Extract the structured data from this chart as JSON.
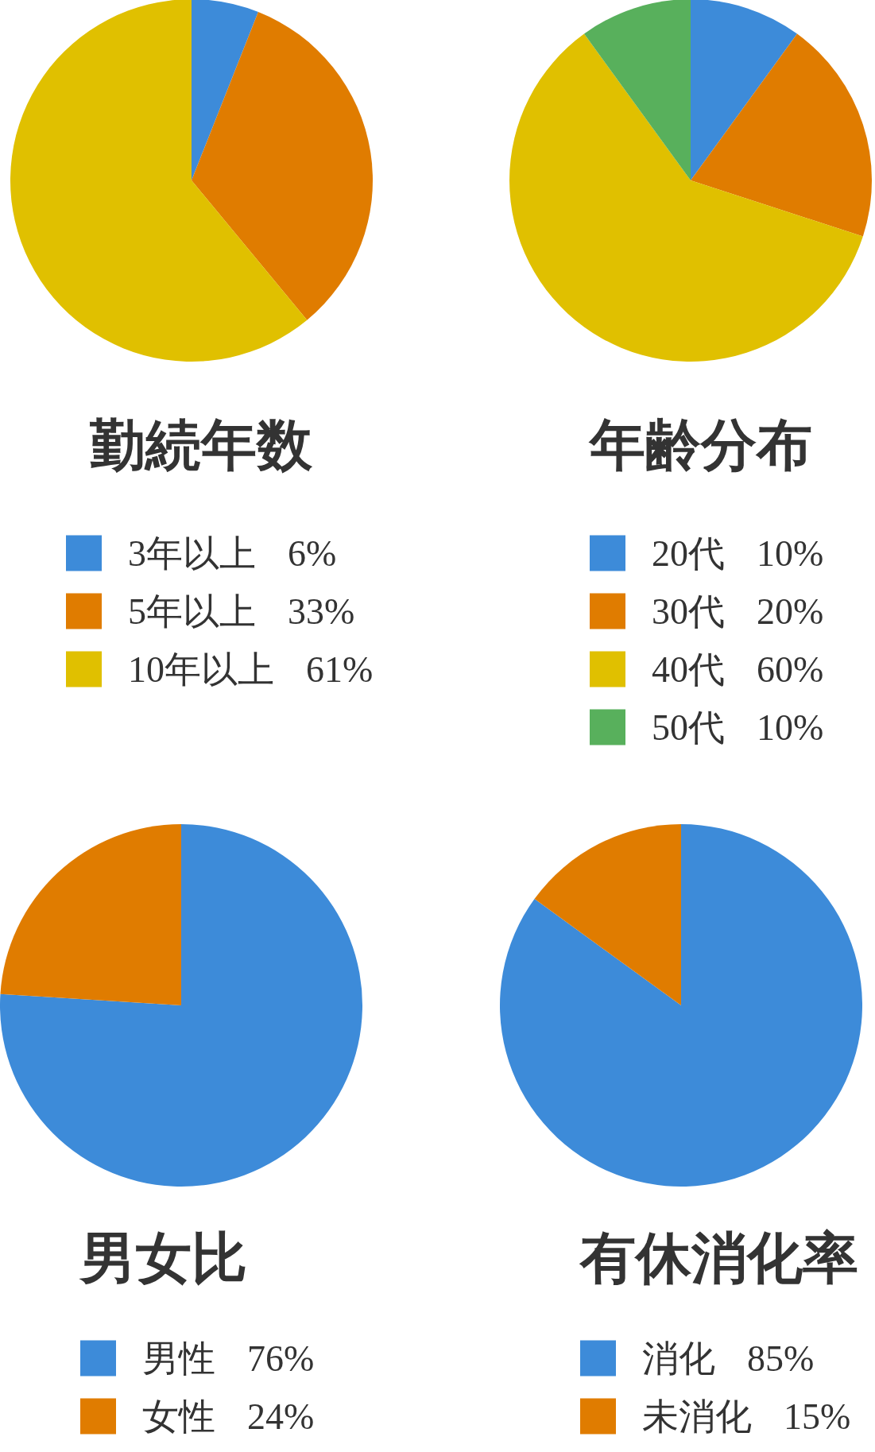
{
  "chart_data": [
    {
      "type": "pie",
      "title": "勤続年数",
      "categories": [
        "3年以上",
        "5年以上",
        "10年以上"
      ],
      "values": [
        6,
        33,
        61
      ],
      "value_labels": [
        "6%",
        "33%",
        "61%"
      ],
      "colors": [
        "#3d8bd9",
        "#e07c00",
        "#e0c000"
      ],
      "legend": "bottom"
    },
    {
      "type": "pie",
      "title": "年齢分布",
      "categories": [
        "20代",
        "30代",
        "40代",
        "50代"
      ],
      "values": [
        10,
        20,
        60,
        10
      ],
      "value_labels": [
        "10%",
        "20%",
        "60%",
        "10%"
      ],
      "colors": [
        "#3d8bd9",
        "#e07c00",
        "#e0c000",
        "#58b05c"
      ],
      "legend": "bottom"
    },
    {
      "type": "pie",
      "title": "男女比",
      "categories": [
        "男性",
        "女性"
      ],
      "values": [
        76,
        24
      ],
      "value_labels": [
        "76%",
        "24%"
      ],
      "colors": [
        "#3d8bd9",
        "#e07c00"
      ],
      "legend": "bottom"
    },
    {
      "type": "pie",
      "title": "有休消化率",
      "categories": [
        "消化",
        "未消化"
      ],
      "values": [
        85,
        15
      ],
      "value_labels": [
        "85%",
        "15%"
      ],
      "colors": [
        "#3d8bd9",
        "#e07c00"
      ],
      "legend": "bottom"
    }
  ]
}
